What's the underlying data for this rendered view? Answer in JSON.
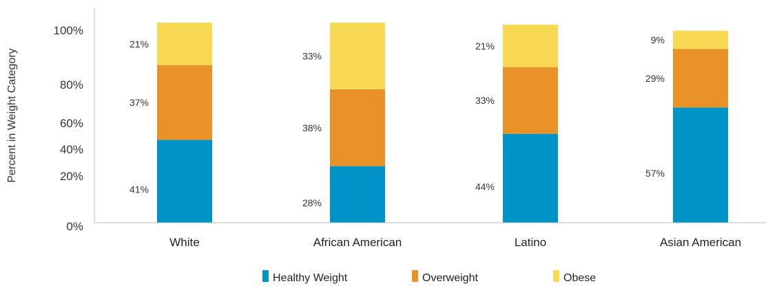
{
  "chart_data": {
    "type": "bar",
    "stacked": true,
    "categories": [
      "White",
      "African American",
      "Latino",
      "Asian American"
    ],
    "series": [
      {
        "name": "Healthy Weight",
        "color": "#0093c7",
        "values": [
          41,
          28,
          44,
          57
        ],
        "labels": [
          "41%",
          "28%",
          "44%",
          "57%"
        ]
      },
      {
        "name": "Overweight",
        "color": "#e99227",
        "values": [
          37,
          38,
          33,
          29
        ],
        "labels": [
          "37%",
          "38%",
          "33%",
          "29%"
        ]
      },
      {
        "name": "Obese",
        "color": "#f9d853",
        "values": [
          21,
          33,
          21,
          9
        ],
        "labels": [
          "21%",
          "33%",
          "21%",
          "9%"
        ]
      }
    ],
    "yticks": [
      {
        "value": 0,
        "label": "0%"
      },
      {
        "value": 20,
        "label": "20%"
      },
      {
        "value": 40,
        "label": "40%"
      },
      {
        "value": 60,
        "label": "60%"
      },
      {
        "value": 80,
        "label": "80%"
      },
      {
        "value": 100,
        "label": "100%"
      }
    ],
    "ylabel": "Percent in Weight Category",
    "xlabel": "",
    "legend_position": "bottom",
    "grid": false
  }
}
